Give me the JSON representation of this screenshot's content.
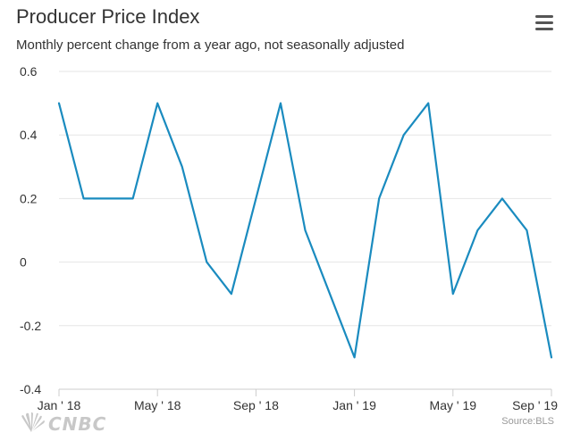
{
  "header": {
    "title": "Producer Price Index",
    "subtitle": "Monthly percent change from a year ago, not seasonally adjusted",
    "menu_icon": "hamburger-menu-icon"
  },
  "footer": {
    "logo_text": "CNBC",
    "source": "Source:BLS"
  },
  "colors": {
    "line": "#1a8bbf",
    "grid": "#e6e6e6",
    "axis": "#cccccc",
    "text": "#333333",
    "logo": "#c8c8c8"
  },
  "chart_data": {
    "type": "line",
    "title": "Producer Price Index",
    "subtitle": "Monthly percent change from a year ago, not seasonally adjusted",
    "xlabel": "",
    "ylabel": "",
    "x": [
      "Jan 2018",
      "Feb 2018",
      "Mar 2018",
      "Apr 2018",
      "May 2018",
      "Jun 2018",
      "Jul 2018",
      "Aug 2018",
      "Sep 2018",
      "Oct 2018",
      "Nov 2018",
      "Dec 2018",
      "Jan 2019",
      "Feb 2019",
      "Mar 2019",
      "Apr 2019",
      "May 2019",
      "Jun 2019",
      "Jul 2019",
      "Aug 2019",
      "Sep 2019"
    ],
    "values": [
      0.5,
      0.2,
      0.2,
      0.2,
      0.5,
      0.3,
      0.0,
      -0.1,
      0.2,
      0.5,
      0.1,
      -0.1,
      -0.3,
      0.2,
      0.4,
      0.5,
      -0.1,
      0.1,
      0.2,
      0.1,
      -0.3
    ],
    "x_ticks": [
      {
        "index": 0,
        "label": "Jan ' 18"
      },
      {
        "index": 4,
        "label": "May ' 18"
      },
      {
        "index": 8,
        "label": "Sep ' 18"
      },
      {
        "index": 12,
        "label": "Jan ' 19"
      },
      {
        "index": 16,
        "label": "May ' 19"
      },
      {
        "index": 20,
        "label": "Sep ' 19"
      }
    ],
    "y_ticks": [
      {
        "value": 0.6,
        "label": "0.6"
      },
      {
        "value": 0.4,
        "label": "0.4"
      },
      {
        "value": 0.2,
        "label": "0.2"
      },
      {
        "value": 0,
        "label": "0"
      },
      {
        "value": -0.2,
        "label": "-0.2"
      },
      {
        "value": -0.4,
        "label": "-0.4"
      }
    ],
    "ylim": [
      -0.4,
      0.6
    ],
    "grid": true,
    "legend": "none"
  }
}
